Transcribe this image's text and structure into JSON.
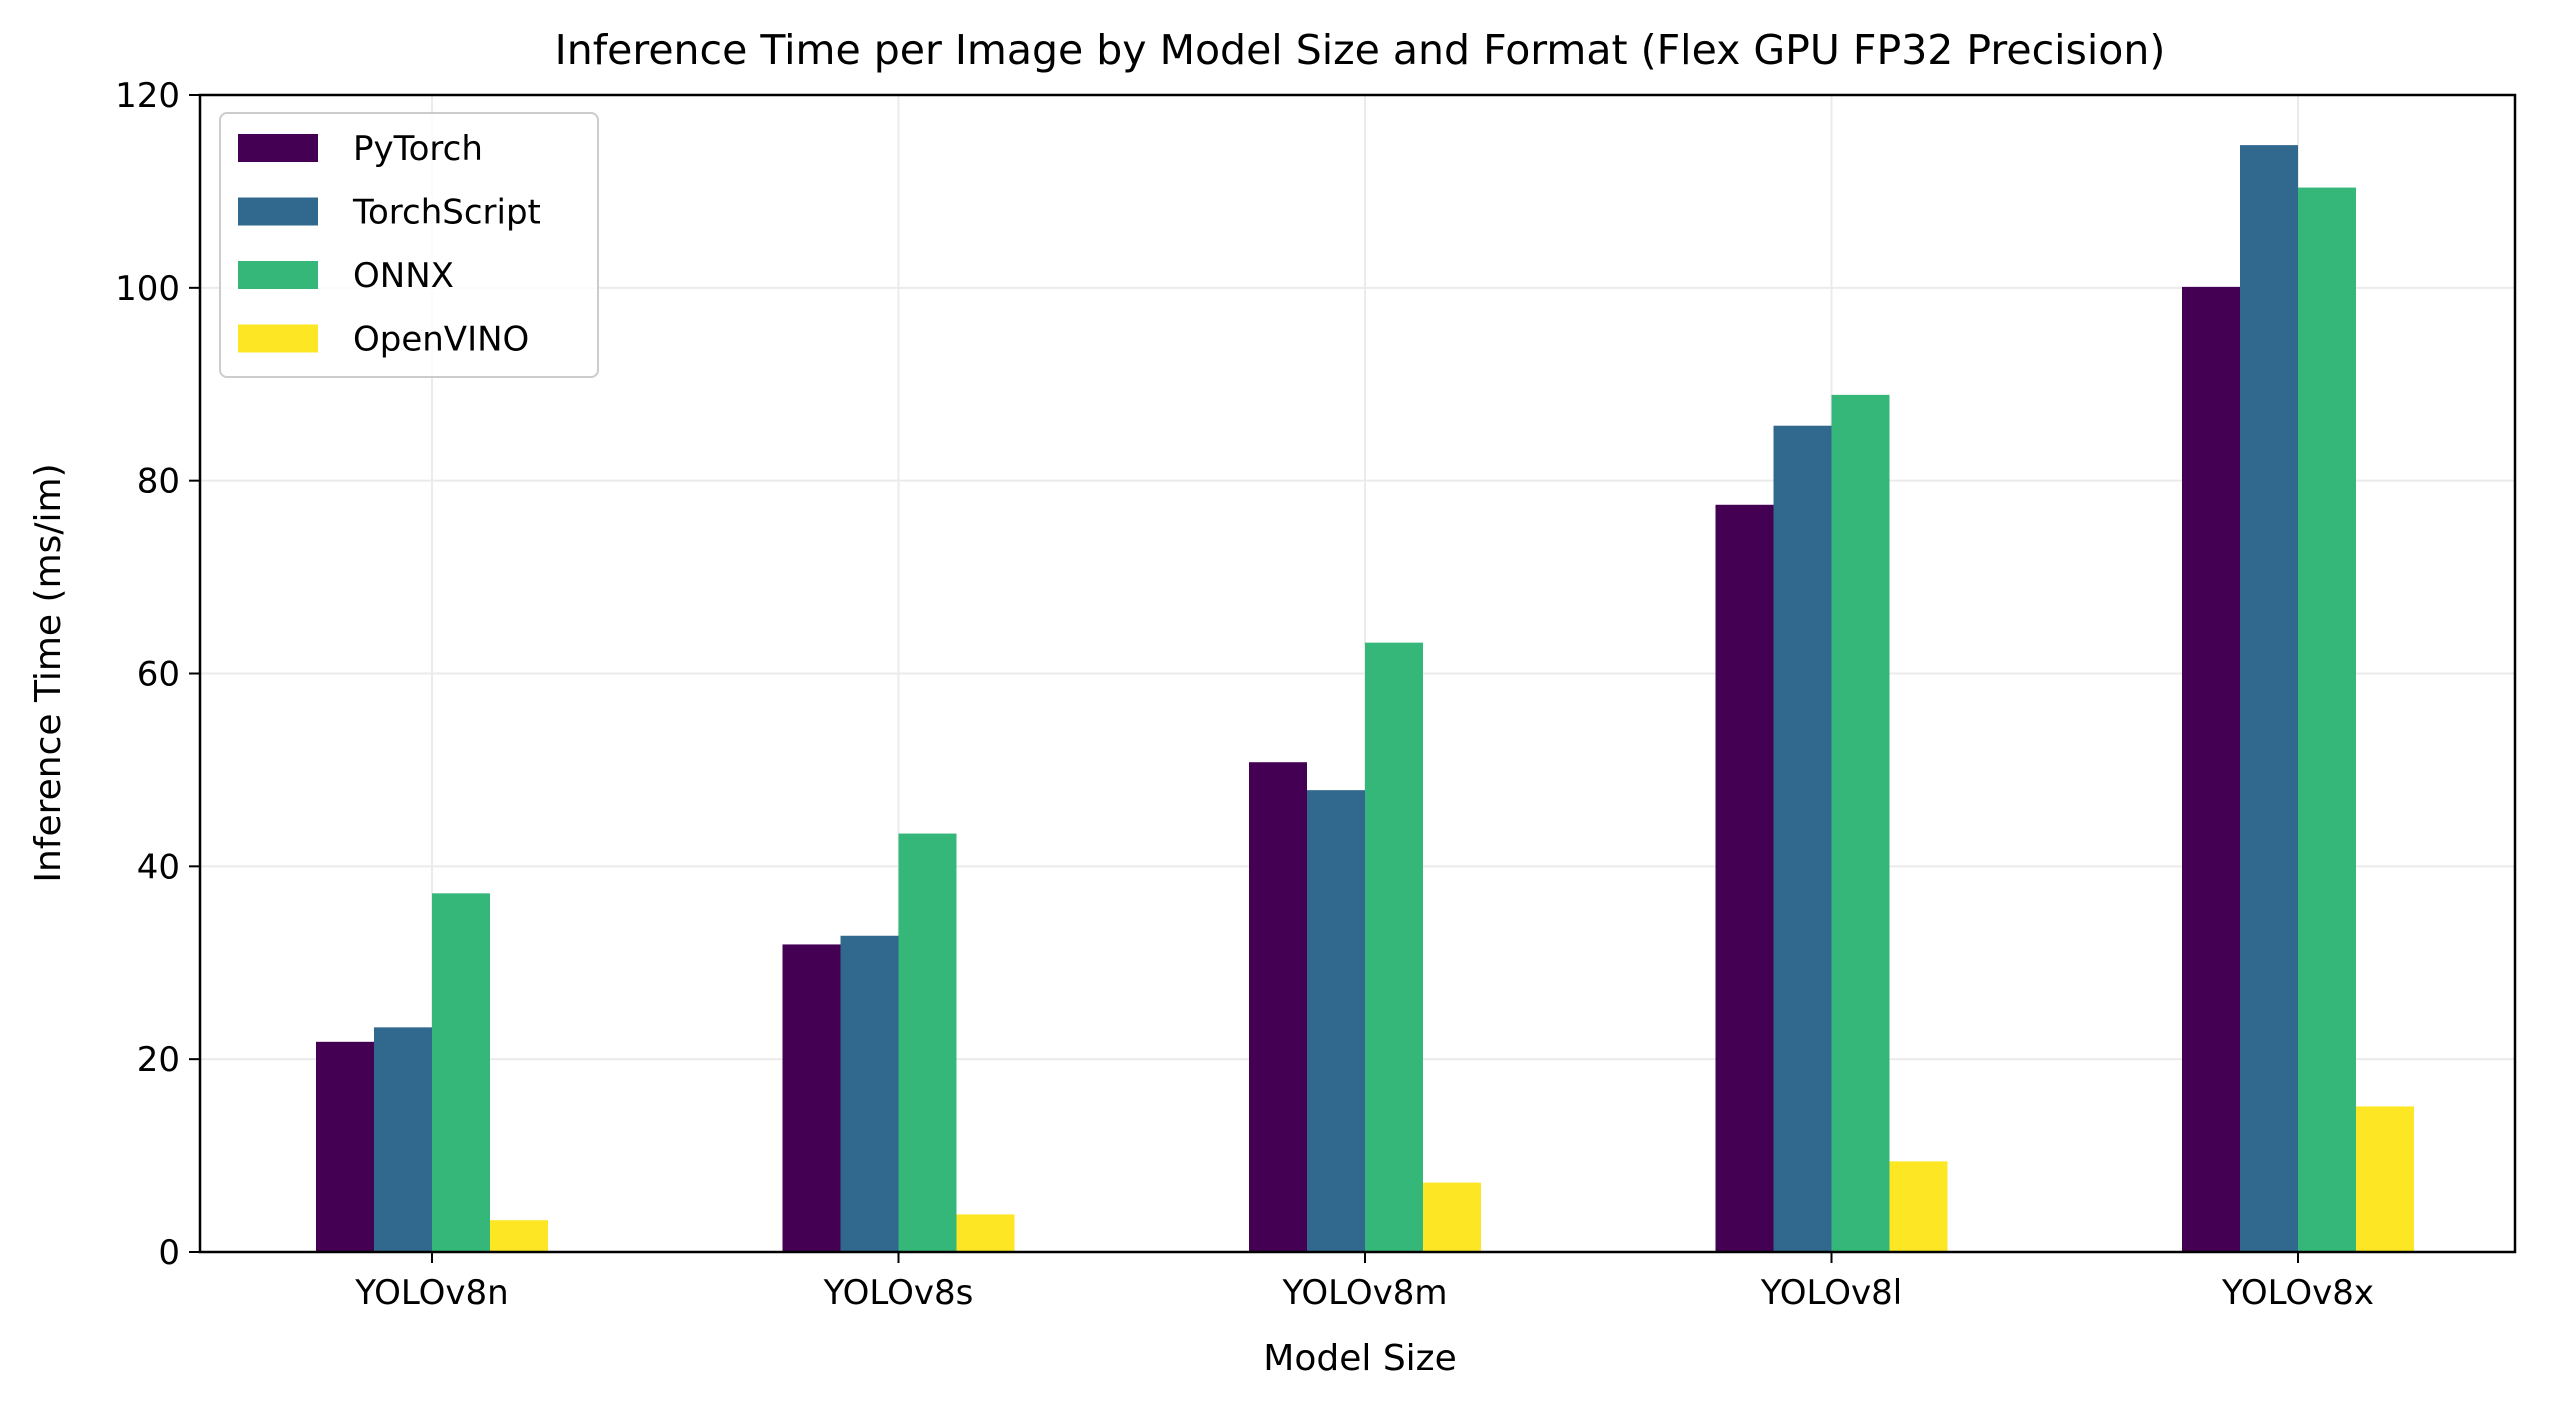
{
  "chart_data": {
    "type": "bar",
    "title": "Inference Time per Image by Model Size and Format (Flex GPU FP32 Precision)",
    "xlabel": "Model Size",
    "ylabel": "Inference Time (ms/im)",
    "categories": [
      "YOLOv8n",
      "YOLOv8s",
      "YOLOv8m",
      "YOLOv8l",
      "YOLOv8x"
    ],
    "series": [
      {
        "name": "PyTorch",
        "color": "#440154",
        "values": [
          21.8,
          31.9,
          50.8,
          77.5,
          100.1
        ]
      },
      {
        "name": "TorchScript",
        "color": "#31688e",
        "values": [
          23.3,
          32.8,
          47.9,
          85.7,
          114.8
        ]
      },
      {
        "name": "ONNX",
        "color": "#35b779",
        "values": [
          37.2,
          43.4,
          63.2,
          88.9,
          110.4
        ]
      },
      {
        "name": "OpenVINO",
        "color": "#fde725",
        "values": [
          3.3,
          3.9,
          7.2,
          9.4,
          15.1
        ]
      }
    ],
    "ylim": [
      0,
      120
    ],
    "yticks": [
      0,
      20,
      40,
      60,
      80,
      100,
      120
    ],
    "grid": true,
    "legend_position": "top-left"
  }
}
